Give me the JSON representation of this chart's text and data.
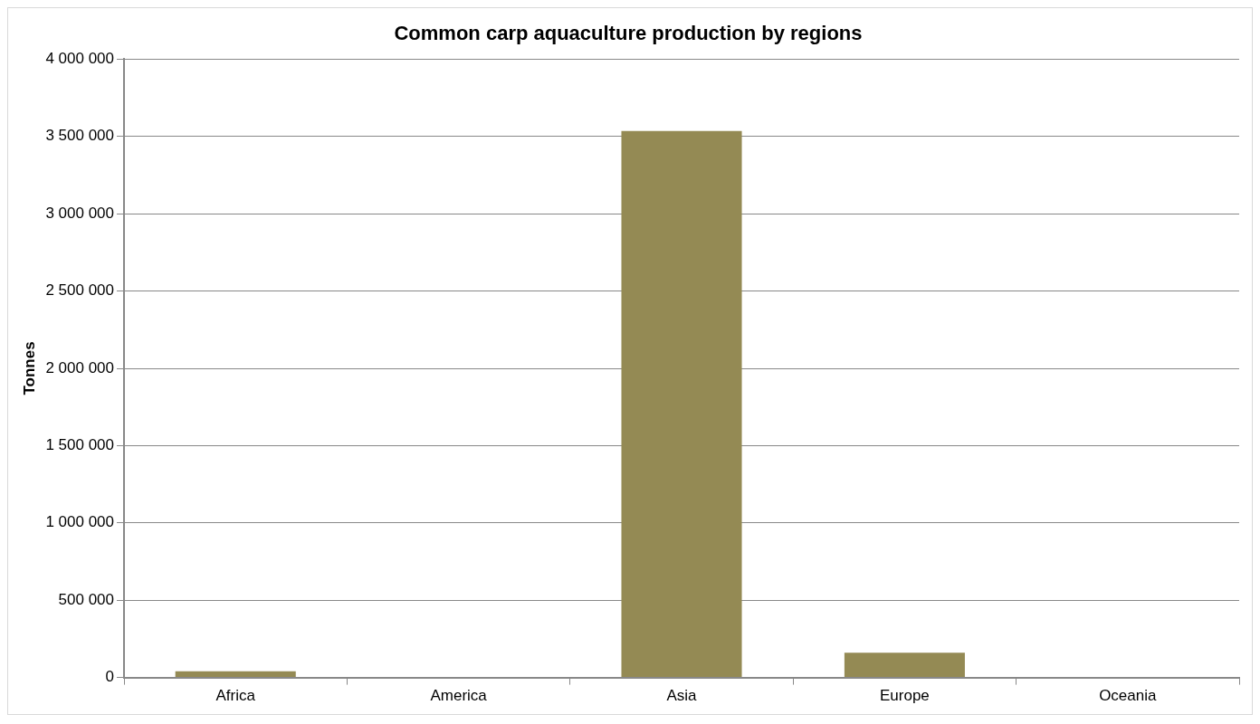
{
  "chart_data": {
    "type": "bar",
    "title": "Common carp aquaculture production by regions",
    "ylabel": "Tonnes",
    "categories": [
      "Africa",
      "America",
      "Asia",
      "Europe",
      "Oceania"
    ],
    "values": [
      40000,
      0,
      3535000,
      160000,
      0
    ],
    "color": "#948a54",
    "ylim": [
      0,
      4000000
    ],
    "yticks": [
      {
        "value": 0,
        "label": "0"
      },
      {
        "value": 500000,
        "label": "500 000"
      },
      {
        "value": 1000000,
        "label": "1 000 000"
      },
      {
        "value": 1500000,
        "label": "1 500 000"
      },
      {
        "value": 2000000,
        "label": "2 000 000"
      },
      {
        "value": 2500000,
        "label": "2 500 000"
      },
      {
        "value": 3000000,
        "label": "3 000 000"
      },
      {
        "value": 3500000,
        "label": "3 500 000"
      },
      {
        "value": 4000000,
        "label": "4 000 000"
      }
    ],
    "grid": "y",
    "legend": false
  }
}
